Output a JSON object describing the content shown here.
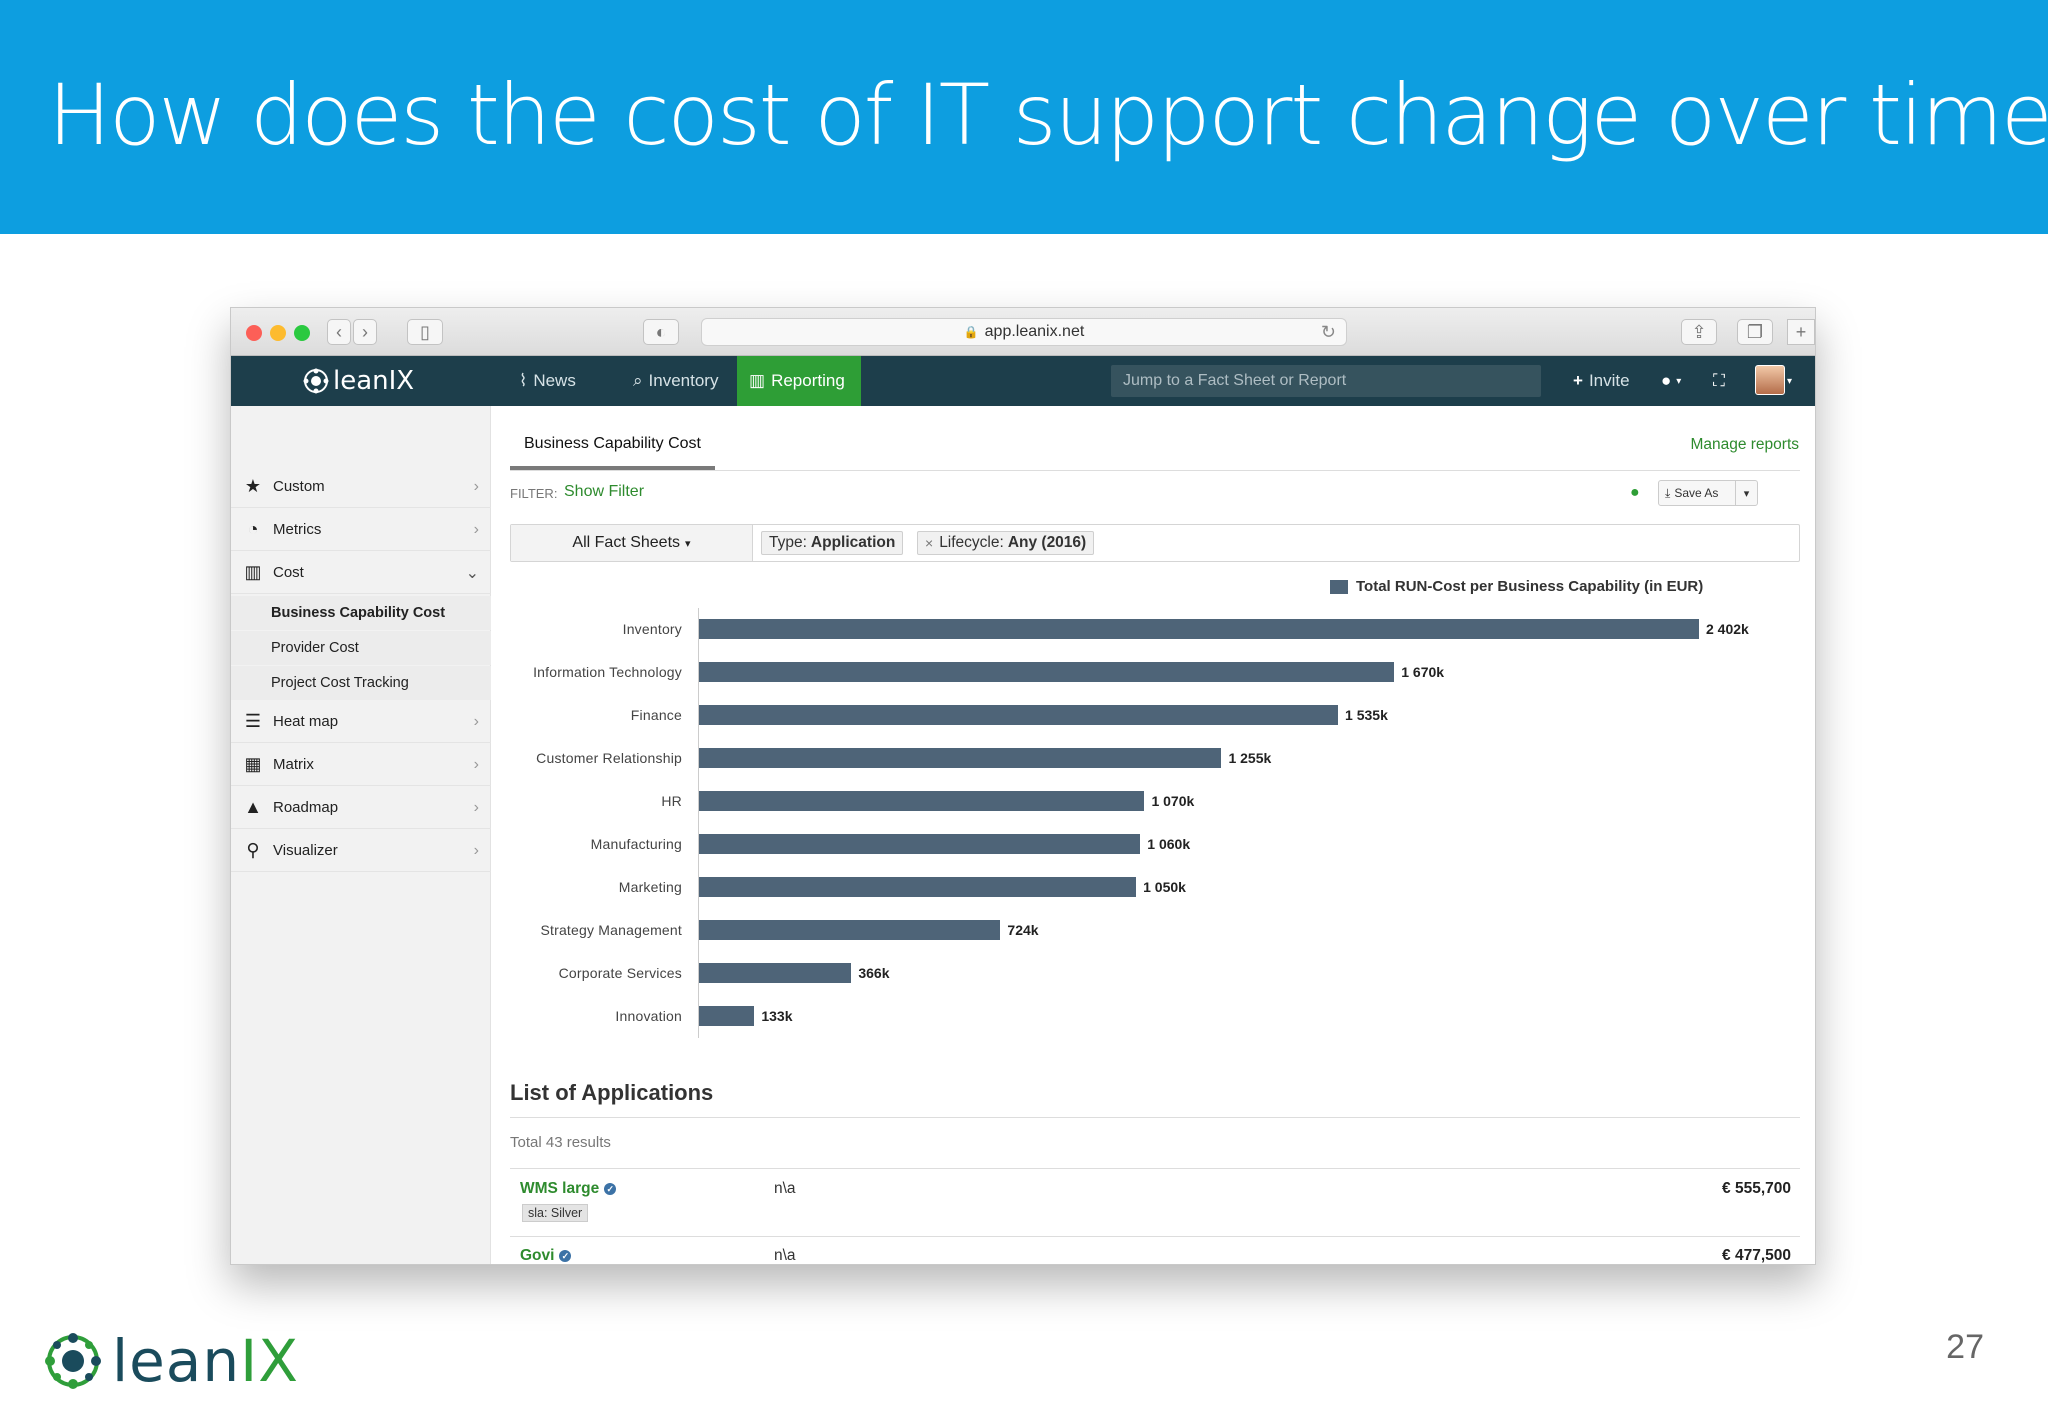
{
  "slide": {
    "title": "How does the cost of IT support change over time?",
    "page_number": "27",
    "logo_text_a": "lean",
    "logo_text_b": "IX"
  },
  "browser": {
    "url": "app.leanix.net"
  },
  "appnav": {
    "logo": "leanIX",
    "items": [
      "News",
      "Inventory",
      "Reporting"
    ],
    "active": "Reporting",
    "search_placeholder": "Jump to a Fact Sheet or Report",
    "invite": "Invite"
  },
  "sidebar": {
    "items": [
      {
        "label": "Custom",
        "icon": "star-icon"
      },
      {
        "label": "Metrics",
        "icon": "gauge-icon"
      },
      {
        "label": "Cost",
        "icon": "bar-chart-icon"
      },
      {
        "label": "Heat map",
        "icon": "list-icon"
      },
      {
        "label": "Matrix",
        "icon": "grid-icon"
      },
      {
        "label": "Roadmap",
        "icon": "road-icon"
      },
      {
        "label": "Visualizer",
        "icon": "sitemap-icon"
      }
    ],
    "cost_sub": [
      "Business Capability Cost",
      "Provider Cost",
      "Project Cost Tracking"
    ],
    "active_sub": "Business Capability Cost"
  },
  "report": {
    "tab": "Business Capability Cost",
    "manage": "Manage reports",
    "filter_label": "FILTER:",
    "filter_link": "Show Filter",
    "save_as": "Save As",
    "fact_sheets": "All Fact Sheets",
    "chip_type_key": "Type:",
    "chip_type_val": "Application",
    "chip_life_key": "Lifecycle:",
    "chip_life_val": "Any (2016)"
  },
  "chart_data": {
    "type": "bar",
    "orientation": "horizontal",
    "title": "",
    "legend": "Total RUN-Cost per Business Capability (in EUR)",
    "legend_position": "top-right",
    "categories": [
      "Inventory",
      "Information Technology",
      "Finance",
      "Customer Relationship",
      "HR",
      "Manufacturing",
      "Marketing",
      "Strategy Management",
      "Corporate Services",
      "Innovation"
    ],
    "values": [
      2402,
      1670,
      1535,
      1255,
      1070,
      1060,
      1050,
      724,
      366,
      133
    ],
    "value_labels": [
      "2 402k",
      "1 670k",
      "1 535k",
      "1 255k",
      "1 070k",
      "1 060k",
      "1 050k",
      "724k",
      "366k",
      "133k"
    ],
    "units": "k EUR",
    "xlim": [
      0,
      2402
    ],
    "color": "#4e6478"
  },
  "list": {
    "title": "List of Applications",
    "total": "Total 43 results",
    "rows": [
      {
        "name": "WMS large",
        "na": "n\\a",
        "cost": "€ 555,700",
        "tag": "sla: Silver"
      },
      {
        "name": "Govi",
        "na": "n\\a",
        "cost": "€ 477,500"
      }
    ]
  },
  "help": "?"
}
